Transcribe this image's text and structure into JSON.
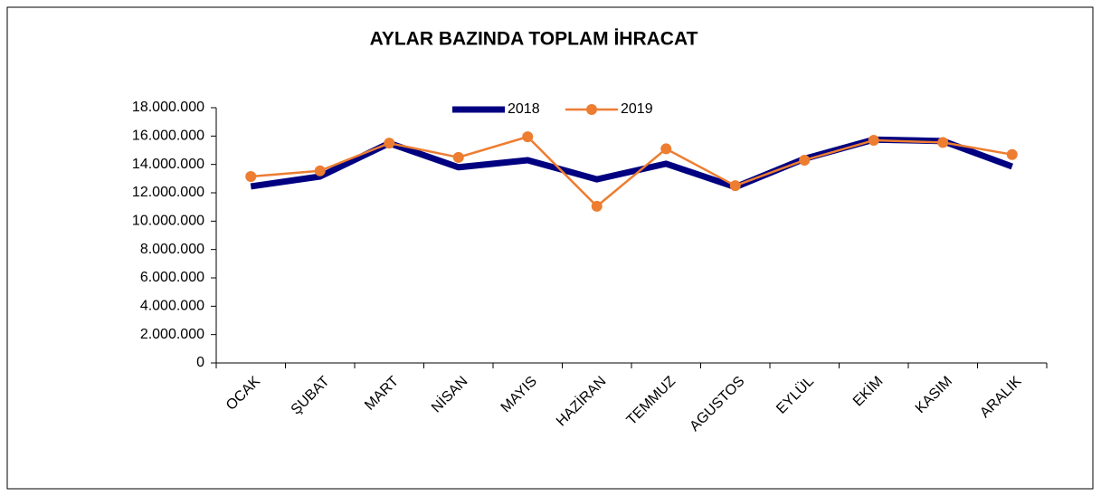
{
  "chart_data": {
    "type": "line",
    "title": "AYLAR BAZINDA TOPLAM İHRACAT",
    "categories": [
      "OCAK",
      "ŞUBAT",
      "MART",
      "NİSAN",
      "MAYIS",
      "HAZİRAN",
      "TEMMUZ",
      "AGUSTOS",
      "EYLÜL",
      "EKİM",
      "KASIM",
      "ARALIK"
    ],
    "series": [
      {
        "name": "2018",
        "color": "#000080",
        "values": [
          12450000,
          13150000,
          15500000,
          13800000,
          14300000,
          12950000,
          14050000,
          12400000,
          14400000,
          15750000,
          15650000,
          13850000
        ]
      },
      {
        "name": "2019",
        "color": "#ed7d31",
        "values": [
          13150000,
          13550000,
          15500000,
          14500000,
          15950000,
          11050000,
          15100000,
          12500000,
          14300000,
          15700000,
          15550000,
          14700000
        ]
      }
    ],
    "ylim": [
      0,
      18000000
    ],
    "yticks": [
      0,
      {
        "value": 2000000,
        "label": "2.000.000"
      },
      {
        "value": 4000000,
        "label": "4.000.000"
      },
      {
        "value": 6000000,
        "label": "6.000.000"
      },
      {
        "value": 8000000,
        "label": "8.000.000"
      },
      {
        "value": 10000000,
        "label": "10.000.000"
      },
      {
        "value": 12000000,
        "label": "12.000.000"
      },
      {
        "value": 14000000,
        "label": "14.000.000"
      },
      {
        "value": 16000000,
        "label": "16.000.000"
      },
      {
        "value": 18000000,
        "label": "18.000.000"
      }
    ],
    "legend": "top"
  }
}
